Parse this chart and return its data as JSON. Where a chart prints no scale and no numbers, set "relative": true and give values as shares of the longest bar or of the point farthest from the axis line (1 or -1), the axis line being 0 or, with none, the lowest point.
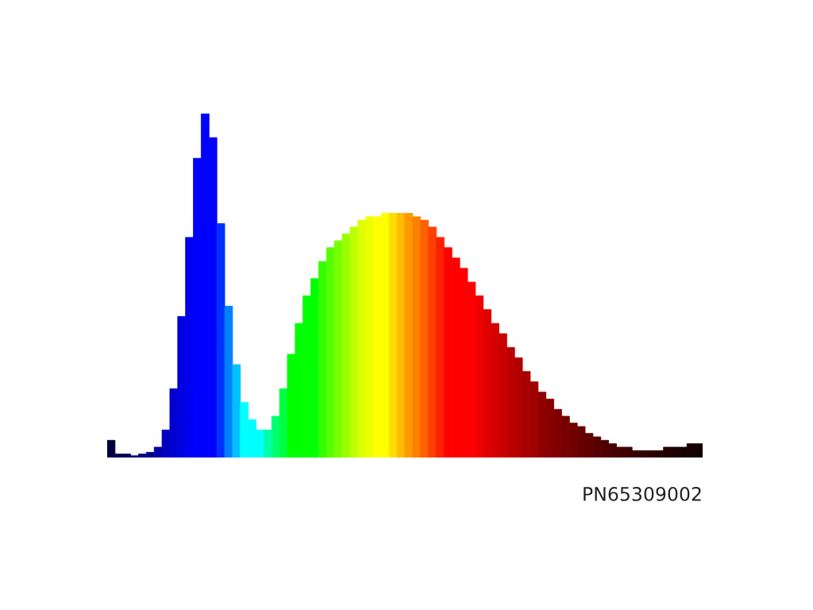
{
  "chart_data": {
    "type": "bar",
    "relative": true,
    "categories": [
      null,
      null,
      null,
      null,
      null,
      null,
      null,
      null,
      null,
      null,
      null,
      null,
      null,
      null,
      null,
      null,
      null,
      null,
      null,
      null,
      null,
      null,
      null,
      null,
      null,
      null,
      null,
      null,
      null,
      null,
      null,
      null,
      null,
      null,
      null,
      null,
      null,
      null,
      null,
      null,
      null,
      null,
      null,
      null,
      null,
      null,
      null,
      null,
      null,
      null,
      null,
      null,
      null,
      null,
      null,
      null,
      null,
      null,
      null,
      null,
      null,
      null,
      null,
      null,
      null,
      null,
      null,
      null,
      null,
      null,
      null,
      null,
      null,
      null,
      null,
      null
    ],
    "values": [
      0.05,
      0.01,
      0.01,
      0.005,
      0.01,
      0.015,
      0.03,
      0.08,
      0.2,
      0.41,
      0.64,
      0.87,
      1,
      0.93,
      0.68,
      0.44,
      0.27,
      0.16,
      0.11,
      0.08,
      0.08,
      0.12,
      0.2,
      0.3,
      0.39,
      0.47,
      0.52,
      0.57,
      0.61,
      0.63,
      0.65,
      0.67,
      0.69,
      0.7,
      0.7,
      0.71,
      0.71,
      0.71,
      0.71,
      0.7,
      0.69,
      0.67,
      0.64,
      0.61,
      0.58,
      0.55,
      0.51,
      0.47,
      0.43,
      0.39,
      0.36,
      0.32,
      0.29,
      0.25,
      0.22,
      0.19,
      0.17,
      0.14,
      0.12,
      0.1,
      0.09,
      0.07,
      0.06,
      0.05,
      0.04,
      0.03,
      0.03,
      0.02,
      0.02,
      0.02,
      0.02,
      0.03,
      0.03,
      0.03,
      0.04,
      0.04
    ],
    "colors": [
      "#000040",
      "#000050",
      "#000060",
      "#000070",
      "#000080",
      "#000090",
      "#0000a8",
      "#0000c0",
      "#0000d0",
      "#0000e0",
      "#0000f0",
      "#0000ff",
      "#0000ff",
      "#0000ff",
      "#0030ff",
      "#0080ff",
      "#00c0ff",
      "#00ffff",
      "#00ffff",
      "#00ffff",
      "#00ffaa",
      "#00ff70",
      "#00ff40",
      "#00ff00",
      "#00ff00",
      "#00ff00",
      "#00ff00",
      "#33ff00",
      "#55ff00",
      "#77ff00",
      "#99ff00",
      "#bbff00",
      "#ddff00",
      "#eeff00",
      "#ffff00",
      "#ffff00",
      "#ffdd00",
      "#ffbb00",
      "#ff9900",
      "#ff8000",
      "#ff6000",
      "#ff4000",
      "#ff2000",
      "#ff0000",
      "#ff0000",
      "#ff0000",
      "#ff0000",
      "#f00000",
      "#e00000",
      "#d50000",
      "#c80000",
      "#bb0000",
      "#b00000",
      "#a80000",
      "#a00000",
      "#900000",
      "#880000",
      "#800000",
      "#780000",
      "#700000",
      "#680000",
      "#600000",
      "#580000",
      "#500000",
      "#4a0000",
      "#440000",
      "#3e0000",
      "#380000",
      "#320000",
      "#2c0000",
      "#260000",
      "#220000",
      "#1e0000",
      "#1a0000",
      "#160000",
      "#120000"
    ],
    "annotations": [
      "PN65309002"
    ]
  }
}
